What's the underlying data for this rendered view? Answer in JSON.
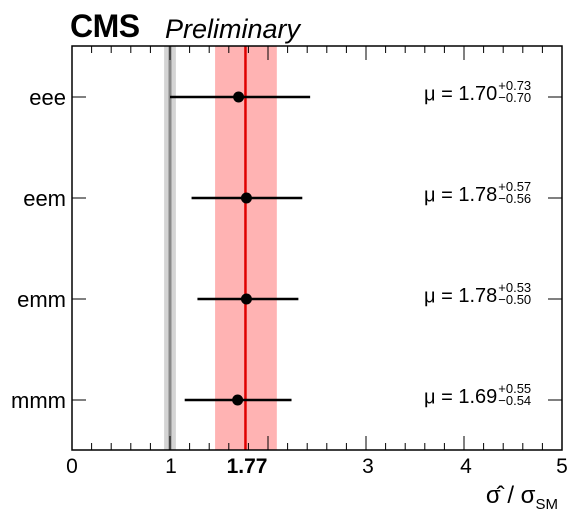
{
  "header": {
    "experiment": "CMS",
    "status": "Preliminary"
  },
  "chart_data": {
    "type": "scatter",
    "orientation": "horizontal",
    "xlabel": "σ̂ / σ",
    "xlabel_sub": "SM",
    "xlim": [
      0,
      5
    ],
    "xticks": [
      0,
      1,
      3,
      4,
      5
    ],
    "highlight_tick": "1.77",
    "categories": [
      "eee",
      "eem",
      "emm",
      "mmm"
    ],
    "series": [
      {
        "values": [
          1.7,
          1.78,
          1.78,
          1.69
        ],
        "err_up": [
          0.73,
          0.57,
          0.53,
          0.55
        ],
        "err_down": [
          0.7,
          0.56,
          0.5,
          0.54
        ],
        "labels": [
          {
            "prefix": "μ = ",
            "value": "1.70",
            "up": "+0.73",
            "down": "−0.70"
          },
          {
            "prefix": "μ = ",
            "value": "1.78",
            "up": "+0.57",
            "down": "−0.56"
          },
          {
            "prefix": "μ = ",
            "value": "1.78",
            "up": "+0.53",
            "down": "−0.50"
          },
          {
            "prefix": "μ = ",
            "value": "1.69",
            "up": "+0.55",
            "down": "−0.54"
          }
        ]
      }
    ],
    "combined": {
      "value": 1.77,
      "band": [
        1.46,
        2.09
      ]
    },
    "sm_reference": {
      "value": 1.0,
      "band": [
        0.94,
        1.06
      ]
    },
    "colors": {
      "combined_line": "#e00000",
      "combined_band": "#ffb3b3",
      "sm_line": "#888888",
      "sm_band": "#d4d4d4"
    }
  }
}
